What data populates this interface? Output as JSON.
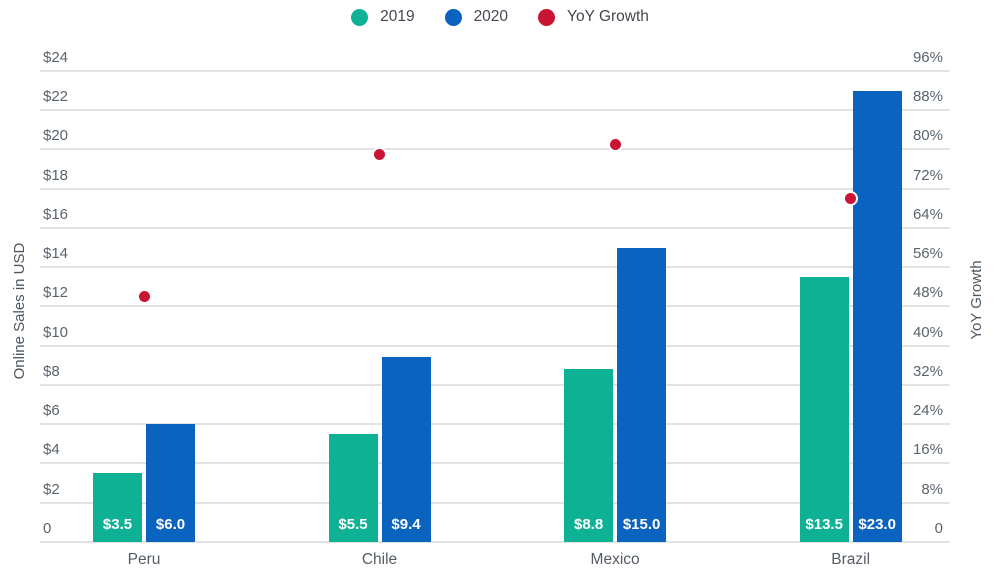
{
  "legend": {
    "items": [
      {
        "name": "2019",
        "label": "2019",
        "color": "#0fb194"
      },
      {
        "name": "2020",
        "label": "2020",
        "color": "#0a63bf"
      },
      {
        "name": "yoy-growth",
        "label": "YoY Growth",
        "color": "#c91533"
      }
    ]
  },
  "chart_data": {
    "type": "combo-bar-scatter",
    "categories": [
      "Peru",
      "Chile",
      "Mexico",
      "Brazil"
    ],
    "series": [
      {
        "name": "2019",
        "type": "bar",
        "axis": "left",
        "values": [
          3.5,
          5.5,
          8.8,
          13.5
        ],
        "value_labels": [
          "$3.5",
          "$5.5",
          "$8.8",
          "$13.5"
        ],
        "color": "#0fb194"
      },
      {
        "name": "2020",
        "type": "bar",
        "axis": "left",
        "values": [
          6.0,
          9.4,
          15.0,
          23.0
        ],
        "value_labels": [
          "$6.0",
          "$9.4",
          "$15.0",
          "$23.0"
        ],
        "color": "#0a63bf"
      },
      {
        "name": "YoY Growth",
        "type": "scatter",
        "axis": "right",
        "values": [
          50,
          79,
          81,
          70
        ],
        "unit": "%",
        "color": "#c91533",
        "marker_border_color": "#ffffff"
      }
    ],
    "left_axis": {
      "title": "Online Sales in USD",
      "min": 0,
      "max": 24,
      "tick_step": 2,
      "ticks": [
        "$24",
        "$22",
        "$20",
        "$18",
        "$16",
        "$14",
        "$12",
        "$10",
        "$8",
        "$6",
        "$4",
        "$2",
        "0"
      ]
    },
    "right_axis": {
      "title": "YoY Growth",
      "min": 0,
      "max": 96,
      "tick_step": 8,
      "ticks": [
        "96%",
        "88%",
        "72%",
        "80%",
        "64%",
        "56%",
        "48%",
        "40%",
        "32%",
        "24%",
        "16%",
        "8%",
        "0"
      ]
    },
    "grid": {
      "horizontal": true,
      "vertical": false,
      "color": "#e2e2e2"
    }
  }
}
